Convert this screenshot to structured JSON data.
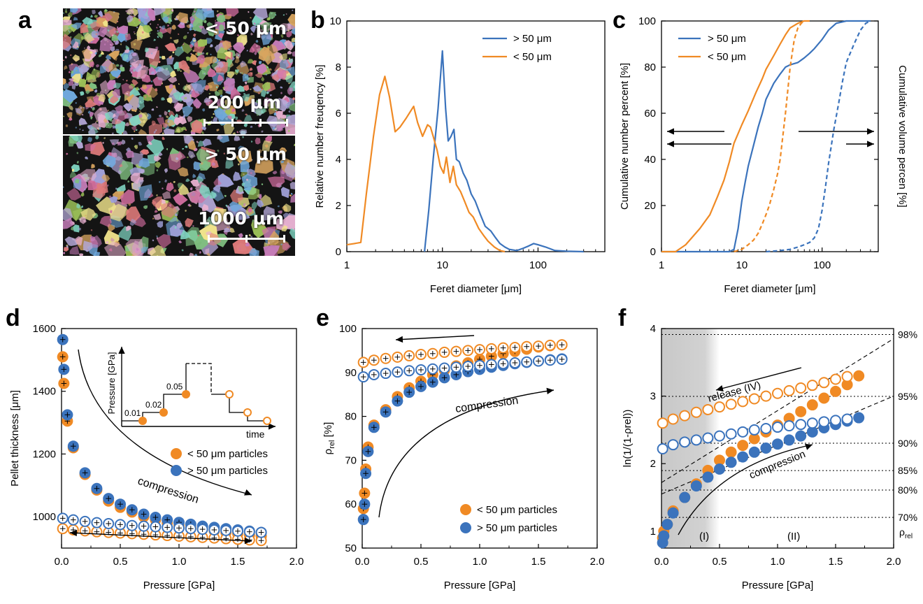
{
  "figure": {
    "panel_labels": [
      "a",
      "b",
      "c",
      "d",
      "e",
      "f"
    ]
  },
  "micrographs": [
    {
      "label": "< 50 μm",
      "scalebar": "200 μm"
    },
    {
      "label": "> 50 μm",
      "scalebar": "1000 μm"
    }
  ],
  "colors": {
    "blue": "#3b73bc",
    "orange": "#f08a24"
  },
  "chart_data": [
    {
      "panel": "b",
      "type": "line",
      "xlabel": "Feret diameter [μm]",
      "ylabel": "Relative number freuqency [%]",
      "xscale": "log",
      "xlim": [
        1,
        500
      ],
      "ylim": [
        0,
        10
      ],
      "xticks": [
        1,
        10,
        100
      ],
      "xtick_labels": [
        "1",
        "10",
        "100"
      ],
      "yticks": [
        0,
        2,
        4,
        6,
        8,
        10
      ],
      "legend_position": "top-right",
      "series": [
        {
          "name": "> 50 μm",
          "color": "#3b73bc",
          "x": [
            6.5,
            7.2,
            8,
            9,
            10,
            10.8,
            11.5,
            12.3,
            13.2,
            14,
            15,
            16.5,
            18,
            20,
            22,
            25,
            28,
            32,
            36,
            40,
            45,
            50,
            60,
            70,
            80,
            90,
            100,
            120,
            150,
            200,
            300
          ],
          "y": [
            0,
            1.8,
            4.0,
            6.2,
            8.7,
            6.2,
            4.8,
            5.0,
            5.3,
            4.0,
            3.9,
            3.4,
            3.1,
            2.5,
            2.2,
            1.6,
            1.1,
            0.9,
            0.6,
            0.35,
            0.2,
            0.1,
            0.05,
            0.15,
            0.25,
            0.35,
            0.3,
            0.2,
            0.05,
            0.02,
            0
          ]
        },
        {
          "name": "< 50 μm",
          "color": "#f08a24",
          "x": [
            1,
            1.2,
            1.4,
            1.6,
            1.9,
            2.2,
            2.5,
            2.8,
            3.2,
            3.6,
            4.2,
            5.0,
            5.5,
            6.2,
            7.0,
            7.5,
            8.0,
            8.8,
            9.5,
            10.3,
            11.0,
            12.0,
            13.0,
            14.0,
            15.5,
            17,
            19,
            21,
            24,
            27,
            30,
            35,
            40,
            45
          ],
          "y": [
            0.3,
            0.35,
            0.4,
            2.5,
            5.0,
            6.8,
            7.6,
            6.7,
            5.2,
            5.4,
            5.8,
            6.3,
            5.6,
            5.0,
            5.5,
            5.4,
            5.0,
            4.4,
            3.7,
            3.4,
            4.1,
            3.0,
            3.7,
            2.9,
            2.6,
            2.2,
            1.7,
            1.5,
            1.0,
            0.7,
            0.45,
            0.2,
            0.05,
            0
          ]
        }
      ]
    },
    {
      "panel": "c",
      "type": "line",
      "xlabel": "Feret diameter [μm]",
      "ylabel": "Cumulative number percent [%]",
      "ylabel_right": "Cumulative volume percen [%]",
      "xscale": "log",
      "xlim": [
        1,
        500
      ],
      "ylim": [
        0,
        100
      ],
      "xticks": [
        1,
        10,
        100
      ],
      "xtick_labels": [
        "1",
        "10",
        "100"
      ],
      "yticks": [
        0,
        20,
        40,
        60,
        80,
        100
      ],
      "legend_position": "top-left",
      "series": [
        {
          "name": "> 50 μm",
          "color": "#3b73bc",
          "style": "solid",
          "x": [
            1,
            7,
            8,
            9,
            10,
            11,
            12,
            14,
            16,
            18,
            20,
            25,
            30,
            35,
            40,
            50,
            60,
            70,
            80,
            100,
            120,
            150,
            200,
            300,
            400
          ],
          "y": [
            0,
            0,
            1,
            10,
            22,
            30,
            37,
            46,
            54,
            60,
            66,
            73,
            77,
            80,
            81,
            82,
            84,
            86,
            88,
            92,
            96,
            99,
            100,
            100,
            100
          ]
        },
        {
          "name": "< 50 μm",
          "color": "#f08a24",
          "style": "solid",
          "x": [
            1,
            1.5,
            2,
            3,
            4,
            5,
            6,
            7,
            8,
            10,
            12,
            15,
            18,
            20,
            25,
            30,
            35,
            40,
            50,
            60,
            70
          ],
          "y": [
            0,
            0,
            3,
            10,
            16,
            24,
            31,
            39,
            47,
            55,
            61,
            69,
            75,
            79,
            85,
            90,
            94,
            97,
            99,
            100,
            100
          ]
        },
        {
          "color": "#3b73bc",
          "style": "dashed",
          "x": [
            20,
            30,
            40,
            50,
            60,
            70,
            80,
            90,
            100,
            110,
            120,
            140,
            160,
            180,
            200,
            250,
            300,
            350,
            400
          ],
          "y": [
            0,
            0.5,
            1,
            2,
            3,
            4,
            6,
            10,
            18,
            28,
            38,
            53,
            64,
            74,
            82,
            90,
            96,
            99,
            100
          ]
        },
        {
          "color": "#f08a24",
          "style": "dashed",
          "x": [
            8,
            10,
            12,
            14,
            16,
            18,
            20,
            22,
            25,
            28,
            30,
            35,
            40,
            45,
            50,
            55,
            60
          ],
          "y": [
            0,
            1,
            3,
            5,
            8,
            12,
            16,
            20,
            27,
            34,
            40,
            60,
            80,
            92,
            97,
            99,
            100
          ]
        }
      ]
    },
    {
      "panel": "d",
      "type": "scatter",
      "xlabel": "Pressure [GPa]",
      "ylabel": "Pellet thickness [μm]",
      "xlim": [
        0,
        2
      ],
      "ylim": [
        900,
        1600
      ],
      "xticks": [
        0.0,
        0.5,
        1.0,
        1.5,
        2.0
      ],
      "xtick_labels": [
        "0.0",
        "0.5",
        "1.0",
        "1.5",
        "2.0"
      ],
      "yticks": [
        1000,
        1200,
        1400,
        1600
      ],
      "legend_position": "center-right",
      "annotations": [
        "compression"
      ],
      "inset": {
        "ylabel": "Pressure [GPa]",
        "xlabel": "time",
        "step_labels": [
          "0.01",
          "0.02",
          "0.05"
        ]
      },
      "series": [
        {
          "name": "< 50 μm particles",
          "color": "#f08a24",
          "fill": "filled",
          "x": [
            0.01,
            0.02,
            0.05,
            0.1,
            0.2,
            0.3,
            0.4,
            0.5,
            0.6,
            0.7,
            0.8,
            0.9,
            1.0,
            1.1,
            1.2,
            1.3,
            1.4,
            1.5,
            1.6,
            1.7
          ],
          "y": [
            1510,
            1425,
            1305,
            1220,
            1135,
            1085,
            1050,
            1030,
            1015,
            1000,
            990,
            980,
            972,
            965,
            960,
            955,
            950,
            946,
            942,
            938
          ]
        },
        {
          "name": "> 50 μm particles",
          "color": "#3b73bc",
          "fill": "filled",
          "x": [
            0.01,
            0.02,
            0.05,
            0.1,
            0.2,
            0.3,
            0.4,
            0.5,
            0.6,
            0.7,
            0.8,
            0.9,
            1.0,
            1.1,
            1.2,
            1.3,
            1.4,
            1.5,
            1.6,
            1.7
          ],
          "y": [
            1565,
            1470,
            1325,
            1225,
            1140,
            1090,
            1058,
            1040,
            1022,
            1008,
            998,
            990,
            982,
            976,
            970,
            966,
            962,
            958,
            954,
            950
          ]
        },
        {
          "color": "#f08a24",
          "fill": "open",
          "x": [
            0.01,
            0.1,
            0.2,
            0.3,
            0.4,
            0.5,
            0.6,
            0.7,
            0.8,
            0.9,
            1.0,
            1.1,
            1.2,
            1.3,
            1.4,
            1.5,
            1.6,
            1.7
          ],
          "y": [
            962,
            958,
            955,
            952,
            950,
            948,
            946,
            944,
            942,
            940,
            938,
            936,
            934,
            932,
            930,
            928,
            926,
            924
          ]
        },
        {
          "color": "#3b73bc",
          "fill": "open",
          "x": [
            0.01,
            0.1,
            0.2,
            0.3,
            0.4,
            0.5,
            0.6,
            0.7,
            0.8,
            0.9,
            1.0,
            1.1,
            1.2,
            1.3,
            1.4,
            1.5,
            1.6,
            1.7
          ],
          "y": [
            995,
            990,
            985,
            981,
            978,
            975,
            972,
            970,
            968,
            966,
            964,
            962,
            960,
            958,
            956,
            954,
            952,
            950
          ]
        }
      ]
    },
    {
      "panel": "e",
      "type": "scatter",
      "xlabel": "Pressure [GPa]",
      "ylabel": "ρrel [%]",
      "xlim": [
        0,
        2
      ],
      "ylim": [
        50,
        100
      ],
      "xticks": [
        0.0,
        0.5,
        1.0,
        1.5,
        2.0
      ],
      "xtick_labels": [
        "0.0",
        "0.5",
        "1.0",
        "1.5",
        "2.0"
      ],
      "yticks": [
        50,
        60,
        70,
        80,
        90,
        100
      ],
      "legend_position": "bottom-right",
      "annotations": [
        "compression"
      ],
      "series": [
        {
          "name": "< 50 μm particles",
          "color": "#f08a24",
          "fill": "filled",
          "x": [
            0.01,
            0.02,
            0.03,
            0.05,
            0.1,
            0.2,
            0.3,
            0.4,
            0.5,
            0.6,
            0.7,
            0.8,
            0.9,
            1.0,
            1.1,
            1.2,
            1.3,
            1.4,
            1.5,
            1.6,
            1.7
          ],
          "y": [
            59,
            62.5,
            68,
            73,
            78,
            81.5,
            84.5,
            86.5,
            88,
            89.5,
            90.5,
            91.5,
            92.2,
            93,
            93.7,
            94.3,
            94.8,
            95.3,
            95.8,
            96.1,
            96.3
          ]
        },
        {
          "name": "> 50 μm particles",
          "color": "#3b73bc",
          "fill": "filled",
          "x": [
            0.01,
            0.02,
            0.03,
            0.05,
            0.1,
            0.2,
            0.3,
            0.4,
            0.5,
            0.6,
            0.7,
            0.8,
            0.9,
            1.0,
            1.1,
            1.2,
            1.3,
            1.4,
            1.5,
            1.6,
            1.7
          ],
          "y": [
            56.5,
            60,
            67,
            72,
            77.5,
            81,
            83.5,
            85.5,
            86.8,
            87.8,
            88.8,
            89.5,
            90.2,
            90.7,
            91.2,
            91.6,
            92,
            92.3,
            92.6,
            92.9,
            93.1
          ]
        },
        {
          "color": "#f08a24",
          "fill": "open",
          "x": [
            0.01,
            0.1,
            0.2,
            0.3,
            0.4,
            0.5,
            0.6,
            0.7,
            0.8,
            0.9,
            1.0,
            1.1,
            1.2,
            1.3,
            1.4,
            1.5,
            1.6,
            1.7
          ],
          "y": [
            92.3,
            92.8,
            93.2,
            93.5,
            93.8,
            94.1,
            94.3,
            94.6,
            94.8,
            95.0,
            95.2,
            95.4,
            95.6,
            95.7,
            95.9,
            96.0,
            96.2,
            96.3
          ]
        },
        {
          "color": "#3b73bc",
          "fill": "open",
          "x": [
            0.01,
            0.1,
            0.2,
            0.3,
            0.4,
            0.5,
            0.6,
            0.7,
            0.8,
            0.9,
            1.0,
            1.1,
            1.2,
            1.3,
            1.4,
            1.5,
            1.6,
            1.7
          ],
          "y": [
            89,
            89.5,
            89.8,
            90.1,
            90.4,
            90.6,
            90.8,
            91.0,
            91.2,
            91.4,
            91.6,
            91.8,
            92.0,
            92.2,
            92.4,
            92.6,
            92.8,
            93.0
          ]
        }
      ]
    },
    {
      "panel": "f",
      "type": "scatter",
      "xlabel": "Pressure [GPa]",
      "ylabel": "ln(1/(1-ρrel))",
      "xlim": [
        0,
        2
      ],
      "ylim": [
        0.75,
        4
      ],
      "xticks": [
        0.0,
        0.5,
        1.0,
        1.5,
        2.0
      ],
      "xtick_labels": [
        "0.0",
        "0.5",
        "1.0",
        "1.5",
        "2.0"
      ],
      "yticks": [
        1,
        2,
        3,
        4
      ],
      "shaded_region": [
        0,
        0.5
      ],
      "reference_lines": [
        {
          "label": "98%",
          "y": 3.912
        },
        {
          "label": "95%",
          "y": 2.996
        },
        {
          "label": "90%",
          "y": 2.303
        },
        {
          "label": "85%",
          "y": 1.897
        },
        {
          "label": "80%",
          "y": 1.609
        },
        {
          "label": "70%",
          "y": 1.204
        }
      ],
      "right_axis_title": "ρrel",
      "annotations": [
        "release (IV)",
        "compression",
        "(I)",
        "(II)"
      ],
      "series": [
        {
          "color": "#f08a24",
          "fill": "filled",
          "x": [
            0.01,
            0.02,
            0.05,
            0.1,
            0.2,
            0.3,
            0.4,
            0.5,
            0.6,
            0.7,
            0.8,
            0.9,
            1.0,
            1.1,
            1.2,
            1.3,
            1.4,
            1.5,
            1.6,
            1.7
          ],
          "y": [
            0.9,
            1.0,
            1.1,
            1.3,
            1.5,
            1.7,
            1.9,
            2.05,
            2.17,
            2.27,
            2.37,
            2.47,
            2.57,
            2.67,
            2.77,
            2.87,
            2.97,
            3.07,
            3.17,
            3.3
          ]
        },
        {
          "color": "#3b73bc",
          "fill": "filled",
          "x": [
            0.01,
            0.02,
            0.05,
            0.1,
            0.2,
            0.3,
            0.4,
            0.5,
            0.6,
            0.7,
            0.8,
            0.9,
            1.0,
            1.1,
            1.2,
            1.3,
            1.4,
            1.5,
            1.6,
            1.7
          ],
          "y": [
            0.83,
            0.93,
            1.1,
            1.27,
            1.5,
            1.67,
            1.8,
            1.92,
            2.02,
            2.1,
            2.17,
            2.23,
            2.29,
            2.35,
            2.41,
            2.47,
            2.53,
            2.58,
            2.63,
            2.68
          ]
        },
        {
          "color": "#f08a24",
          "fill": "open",
          "x": [
            0.01,
            0.1,
            0.2,
            0.3,
            0.4,
            0.5,
            0.6,
            0.7,
            0.8,
            0.9,
            1.0,
            1.1,
            1.2,
            1.3,
            1.4,
            1.5,
            1.6
          ],
          "y": [
            2.6,
            2.66,
            2.71,
            2.76,
            2.8,
            2.84,
            2.88,
            2.92,
            2.96,
            3.0,
            3.04,
            3.08,
            3.12,
            3.16,
            3.2,
            3.25,
            3.29
          ]
        },
        {
          "color": "#3b73bc",
          "fill": "open",
          "x": [
            0.01,
            0.1,
            0.2,
            0.3,
            0.4,
            0.5,
            0.6,
            0.7,
            0.8,
            0.9,
            1.0,
            1.1,
            1.2,
            1.3,
            1.4,
            1.5,
            1.6
          ],
          "y": [
            2.22,
            2.28,
            2.32,
            2.35,
            2.38,
            2.41,
            2.44,
            2.47,
            2.5,
            2.52,
            2.54,
            2.56,
            2.58,
            2.6,
            2.62,
            2.64,
            2.66
          ]
        }
      ]
    }
  ]
}
